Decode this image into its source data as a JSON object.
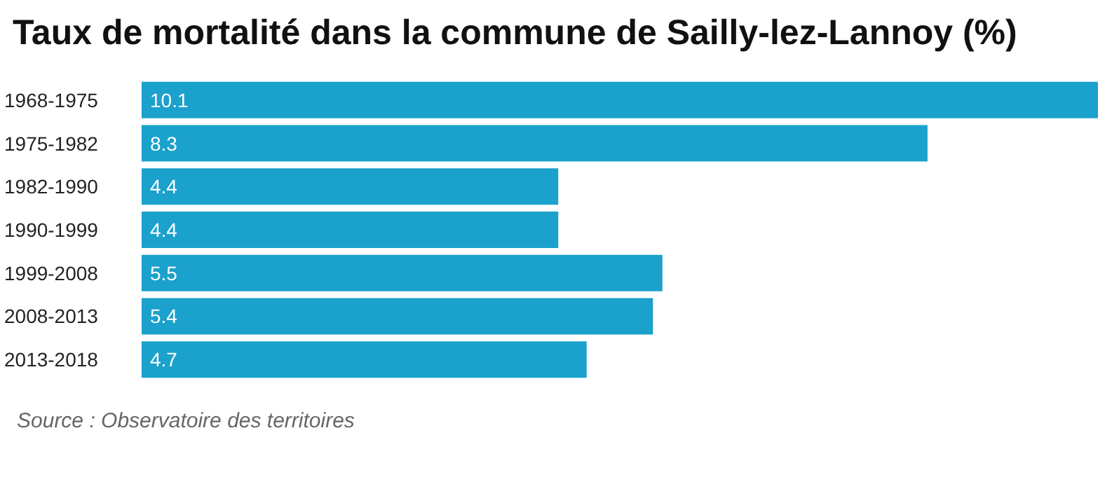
{
  "chart_data": {
    "type": "bar",
    "orientation": "horizontal",
    "title": "Taux de mortalité dans la commune de Sailly-lez-Lannoy (%)",
    "categories": [
      "1968-1975",
      "1975-1982",
      "1982-1990",
      "1990-1999",
      "1999-2008",
      "2008-2013",
      "2013-2018"
    ],
    "values": [
      10.1,
      8.3,
      4.4,
      4.4,
      5.5,
      5.4,
      4.7
    ],
    "color": "#1aa1cc",
    "data_labels": true,
    "annotations": [
      "Source : Observatoire des territoires"
    ]
  }
}
